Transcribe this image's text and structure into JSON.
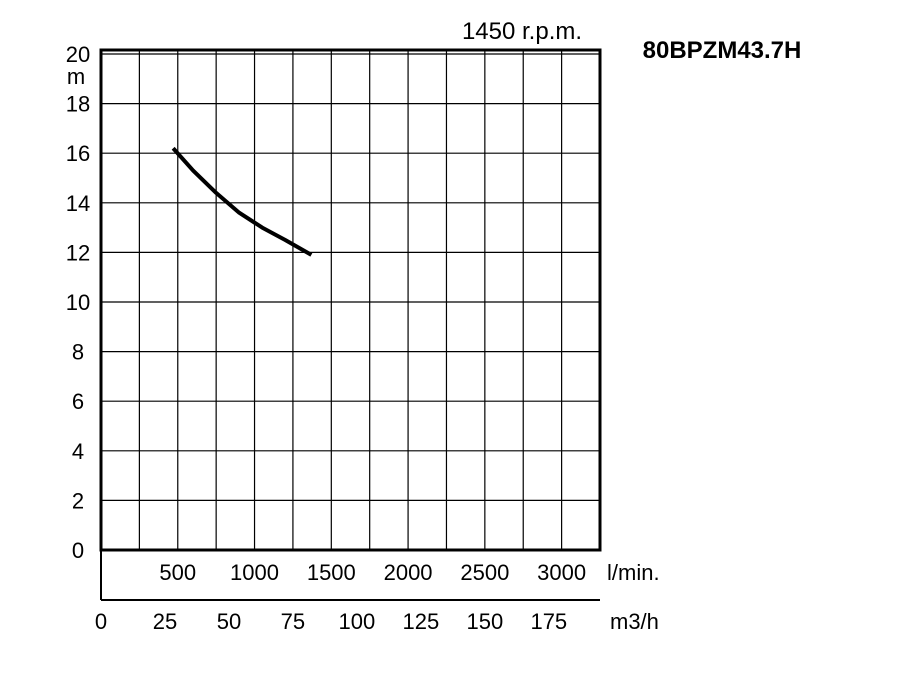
{
  "chart_data": {
    "type": "line",
    "speed_label": "1450 r.p.m.",
    "model_label": "80BPZM43.7H",
    "ylabel": "m",
    "ylim": [
      0,
      20
    ],
    "y_ticks": [
      "0",
      "2",
      "4",
      "6",
      "8",
      "10",
      "12",
      "14",
      "16",
      "18",
      "20"
    ],
    "xlim_lmin": [
      0,
      3250
    ],
    "x_ticks_lmin": [
      "500",
      "1000",
      "1500",
      "2000",
      "2500",
      "3000"
    ],
    "x_unit_lmin": "l/min.",
    "x_ticks_m3h": [
      "0",
      "25",
      "50",
      "75",
      "100",
      "125",
      "150",
      "175"
    ],
    "x_unit_m3h": "m3/h",
    "grid": true,
    "series": [
      {
        "x": [
          470,
          600,
          750,
          900,
          1050,
          1200,
          1370
        ],
        "y": [
          16.2,
          15.3,
          14.4,
          13.6,
          13.0,
          12.5,
          11.9
        ]
      }
    ]
  }
}
